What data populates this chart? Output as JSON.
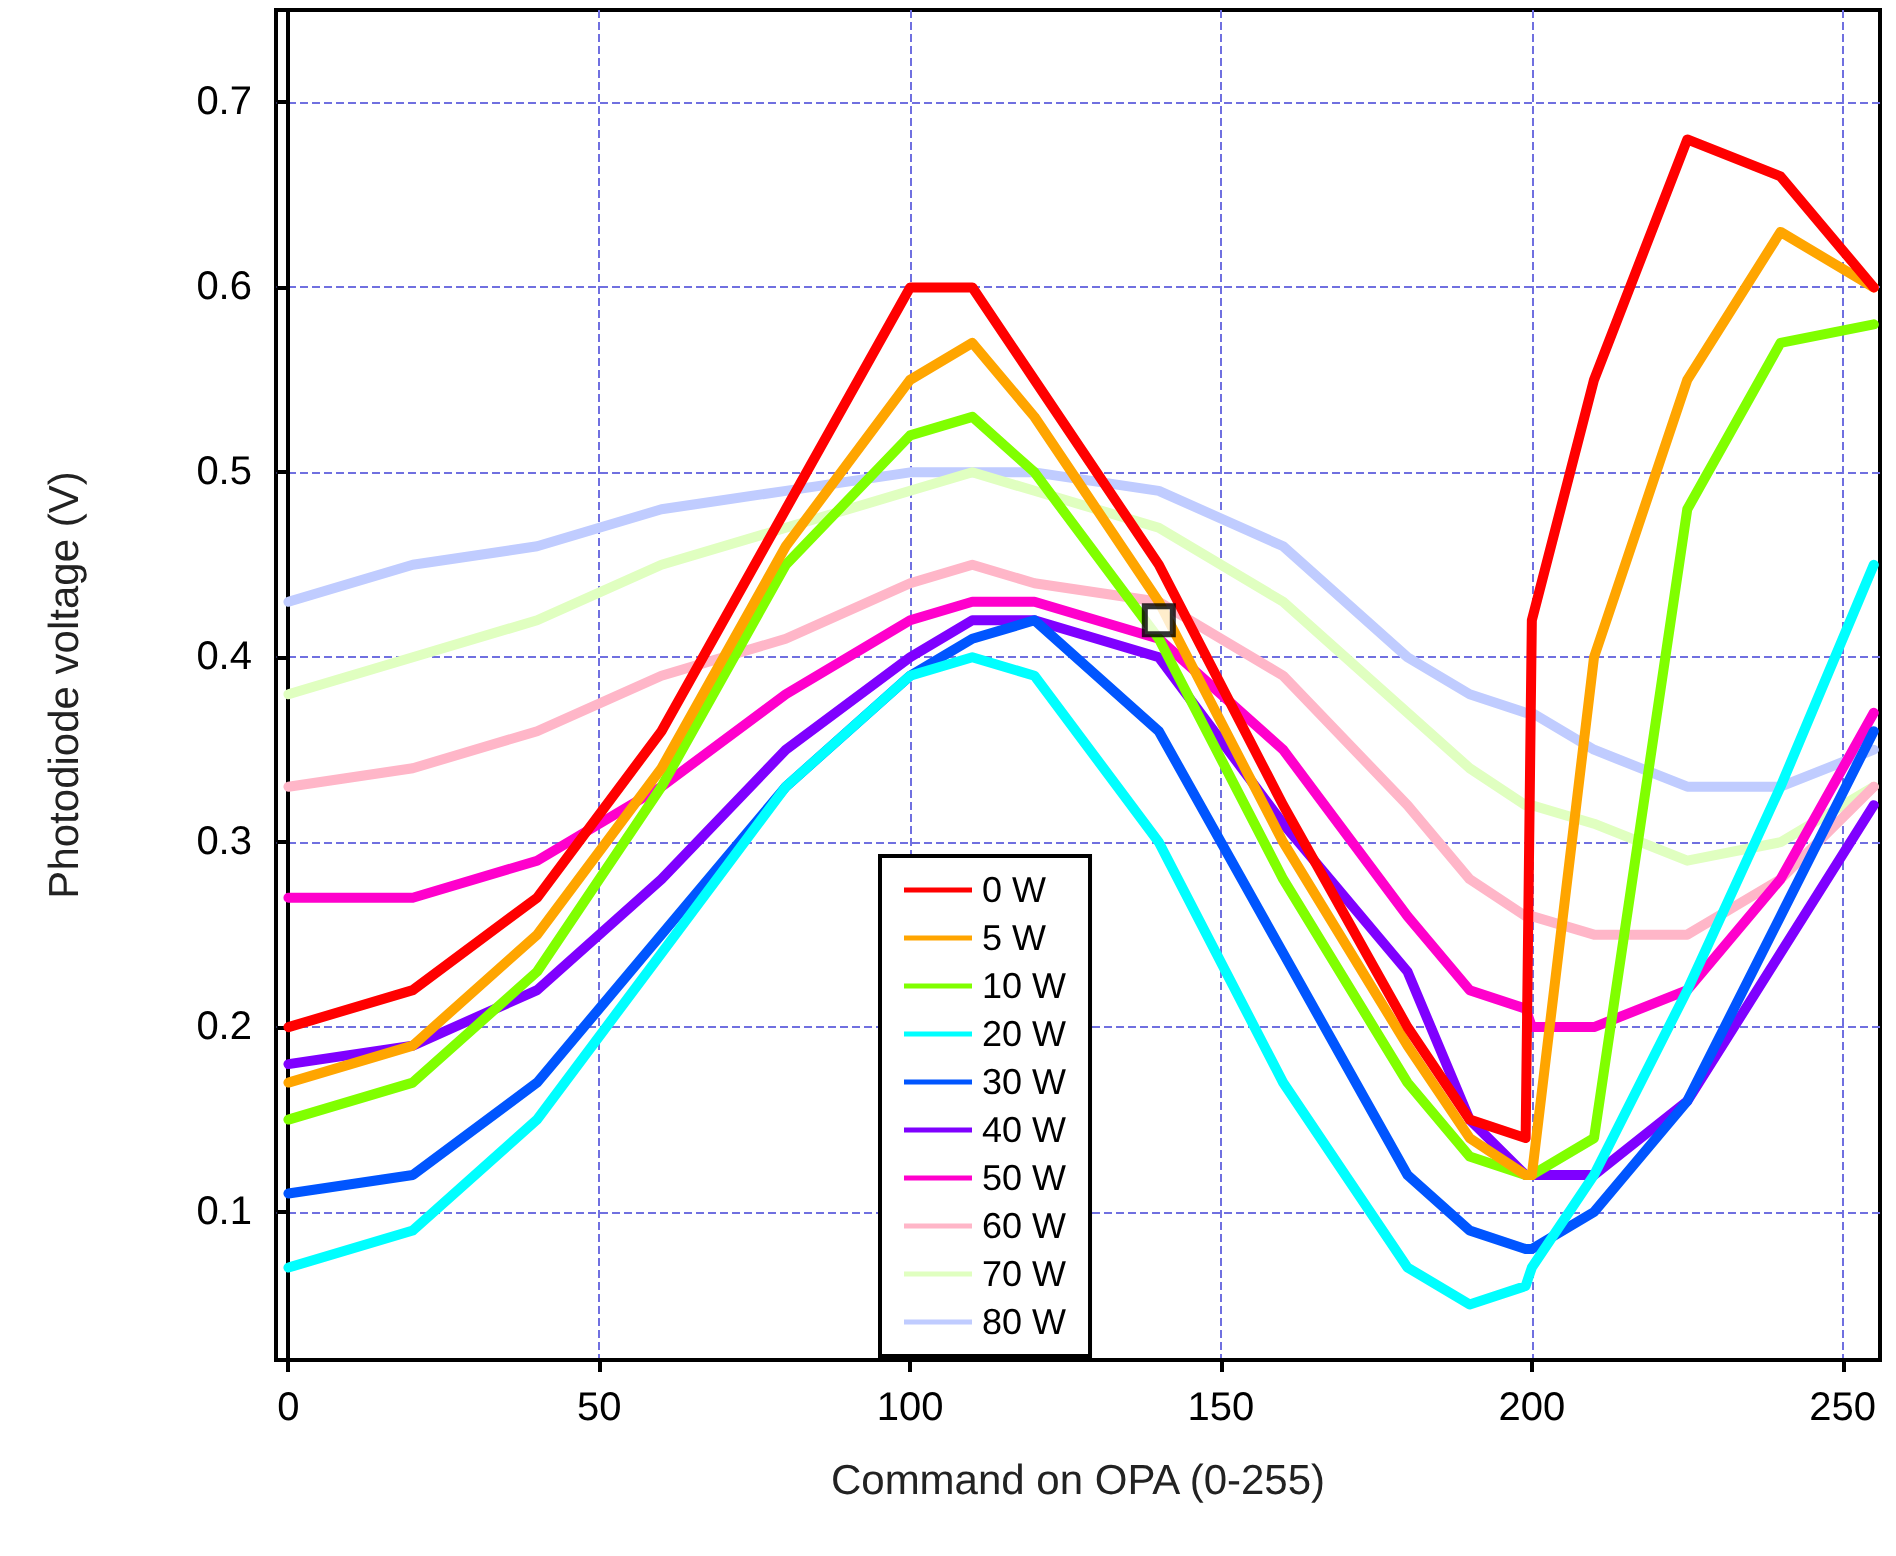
{
  "chart_data": {
    "type": "line",
    "xlabel": "Command on OPA (0-255)",
    "ylabel": "Photodiode voltage (V)",
    "x": [
      0,
      20,
      40,
      60,
      80,
      100,
      110,
      120,
      140,
      160,
      180,
      190,
      199,
      200,
      210,
      225,
      240,
      255
    ],
    "xlim": [
      -2,
      256
    ],
    "xticks": [
      0,
      50,
      100,
      150,
      200,
      250
    ],
    "ylim": [
      0.02,
      0.75
    ],
    "yticks": [
      0.1,
      0.2,
      0.3,
      0.4,
      0.5,
      0.6,
      0.7
    ],
    "grid": true,
    "legend": "bottom",
    "marker": "none",
    "line_style": "solid",
    "series": [
      {
        "name": "0 W",
        "color": "#ff0000",
        "values": [
          0.2,
          0.22,
          0.27,
          0.36,
          0.48,
          0.6,
          0.6,
          0.55,
          0.45,
          0.32,
          0.2,
          0.15,
          0.14,
          0.42,
          0.55,
          0.68,
          0.66,
          0.6
        ]
      },
      {
        "name": "5 W",
        "color": "#ffa500",
        "values": [
          0.17,
          0.19,
          0.25,
          0.34,
          0.46,
          0.55,
          0.57,
          0.53,
          0.43,
          0.3,
          0.19,
          0.14,
          0.12,
          0.12,
          0.4,
          0.55,
          0.63,
          0.6
        ]
      },
      {
        "name": "10 W",
        "color": "#80ff00",
        "values": [
          0.15,
          0.17,
          0.23,
          0.33,
          0.45,
          0.52,
          0.53,
          0.5,
          0.41,
          0.28,
          0.17,
          0.13,
          0.12,
          0.12,
          0.14,
          0.48,
          0.57,
          0.58
        ]
      },
      {
        "name": "20 W",
        "color": "#00ffff",
        "values": [
          0.07,
          0.09,
          0.15,
          0.24,
          0.33,
          0.39,
          0.4,
          0.39,
          0.3,
          0.17,
          0.07,
          0.05,
          0.06,
          0.07,
          0.12,
          0.22,
          0.33,
          0.45
        ]
      },
      {
        "name": "30 W",
        "color": "#0055ff",
        "values": [
          0.11,
          0.12,
          0.17,
          0.25,
          0.33,
          0.39,
          0.41,
          0.42,
          0.36,
          0.24,
          0.12,
          0.09,
          0.08,
          0.08,
          0.1,
          0.16,
          0.26,
          0.36
        ]
      },
      {
        "name": "40 W",
        "color": "#7f00ff",
        "values": [
          0.18,
          0.19,
          0.22,
          0.28,
          0.35,
          0.4,
          0.42,
          0.42,
          0.4,
          0.31,
          0.23,
          0.15,
          0.12,
          0.12,
          0.12,
          0.16,
          0.24,
          0.32
        ]
      },
      {
        "name": "50 W",
        "color": "#ff00cc",
        "values": [
          0.27,
          0.27,
          0.29,
          0.33,
          0.38,
          0.42,
          0.43,
          0.43,
          0.41,
          0.35,
          0.26,
          0.22,
          0.21,
          0.2,
          0.2,
          0.22,
          0.28,
          0.37
        ]
      },
      {
        "name": "60 W",
        "color": "#ffb6c8",
        "values": [
          0.33,
          0.34,
          0.36,
          0.39,
          0.41,
          0.44,
          0.45,
          0.44,
          0.43,
          0.39,
          0.32,
          0.28,
          0.26,
          0.26,
          0.25,
          0.25,
          0.28,
          0.33
        ]
      },
      {
        "name": "70 W",
        "color": "#e0ffc0",
        "values": [
          0.38,
          0.4,
          0.42,
          0.45,
          0.47,
          0.49,
          0.5,
          0.49,
          0.47,
          0.43,
          0.37,
          0.34,
          0.32,
          0.32,
          0.31,
          0.29,
          0.3,
          0.33
        ]
      },
      {
        "name": "80 W",
        "color": "#c0ccff",
        "values": [
          0.43,
          0.45,
          0.46,
          0.48,
          0.49,
          0.5,
          0.5,
          0.5,
          0.49,
          0.46,
          0.4,
          0.38,
          0.37,
          0.37,
          0.35,
          0.33,
          0.33,
          0.35
        ]
      },
      {
        "type": "scatter",
        "color": "#000000",
        "marker": "square",
        "x": [
          140
        ],
        "values": [
          0.42
        ]
      }
    ]
  }
}
